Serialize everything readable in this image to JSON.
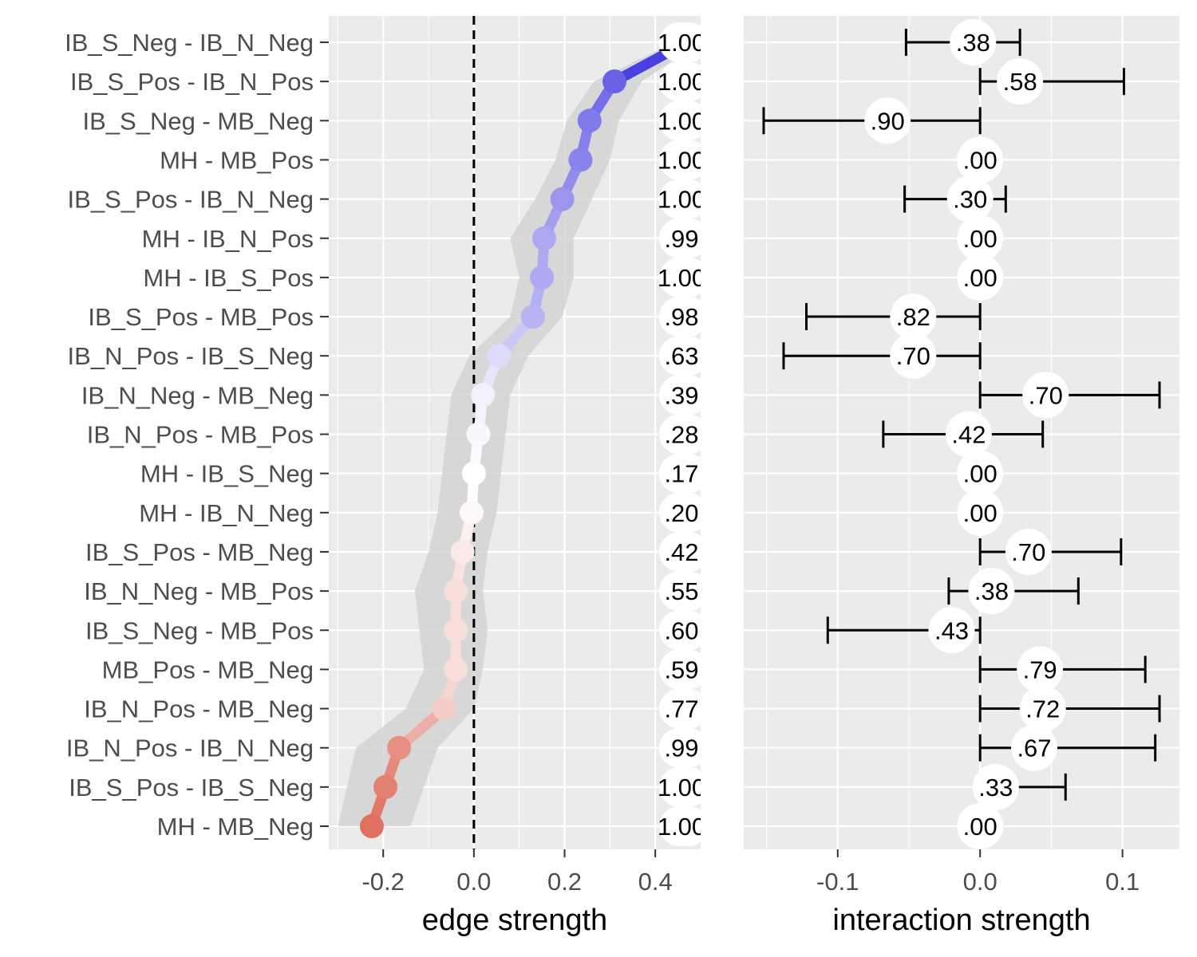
{
  "chart_data": [
    {
      "type": "line",
      "xlabel": "edge strength",
      "xlim": [
        -0.32,
        0.5
      ],
      "xticks": [
        -0.2,
        0.0,
        0.2,
        0.4
      ],
      "xtick_labels": [
        "-0.2",
        "0.0",
        "0.2",
        "0.4"
      ],
      "reference_line_x": 0.0,
      "reference_line_style": "dashed",
      "grid": true,
      "categories": [
        "IB_S_Neg - IB_N_Neg",
        "IB_S_Pos - IB_N_Pos",
        "IB_S_Neg - MB_Neg",
        "MH - MB_Pos",
        "IB_S_Pos - IB_N_Neg",
        "MH - IB_N_Pos",
        "MH - IB_S_Pos",
        "IB_S_Pos - MB_Pos",
        "IB_N_Pos - IB_S_Neg",
        "IB_N_Neg - MB_Neg",
        "IB_N_Pos - MB_Pos",
        "MH - IB_S_Neg",
        "MH - IB_N_Neg",
        "IB_S_Pos - MB_Neg",
        "IB_N_Neg - MB_Pos",
        "IB_S_Neg - MB_Pos",
        "MB_Pos - MB_Neg",
        "IB_N_Pos - MB_Neg",
        "IB_N_Pos - IB_N_Neg",
        "IB_S_Pos - IB_S_Neg",
        "MH - MB_Neg"
      ],
      "values": [
        0.47,
        0.31,
        0.255,
        0.235,
        0.195,
        0.155,
        0.15,
        0.13,
        0.055,
        0.02,
        0.01,
        0.0,
        -0.005,
        -0.025,
        -0.04,
        -0.04,
        -0.04,
        -0.065,
        -0.165,
        -0.195,
        -0.225
      ],
      "ribbon_lower": [
        0.44,
        0.265,
        0.205,
        0.18,
        0.135,
        0.08,
        0.1,
        0.08,
        -0.01,
        -0.05,
        -0.06,
        -0.07,
        -0.08,
        -0.1,
        -0.13,
        -0.12,
        -0.11,
        -0.15,
        -0.26,
        -0.28,
        -0.3
      ],
      "ribbon_upper": [
        0.5,
        0.37,
        0.32,
        0.3,
        0.26,
        0.22,
        0.22,
        0.195,
        0.12,
        0.08,
        0.07,
        0.06,
        0.05,
        0.03,
        0.02,
        0.03,
        0.02,
        0.0,
        -0.08,
        -0.11,
        -0.14
      ],
      "right_labels": [
        "1.00",
        "1.00",
        "1.00",
        "1.00",
        "1.00",
        ".99",
        "1.00",
        ".98",
        ".63",
        ".39",
        ".28",
        ".17",
        ".20",
        ".42",
        ".55",
        ".60",
        ".59",
        ".77",
        ".99",
        "1.00",
        "1.00"
      ],
      "colors": {
        "positive_max": "#2b1fdc",
        "neutral": "#ffffff",
        "negative_max": "#e0705f",
        "ribbon": "#d4d4d4"
      }
    },
    {
      "type": "errorbar",
      "xlabel": "interaction strength",
      "xlim": [
        -0.166,
        0.14
      ],
      "xticks": [
        -0.1,
        0.0,
        0.1
      ],
      "xtick_labels": [
        "-0.1",
        "0.0",
        "0.1"
      ],
      "grid": true,
      "lower": [
        -0.052,
        0.0,
        -0.152,
        0.0,
        -0.053,
        0.0,
        0.0,
        -0.122,
        -0.138,
        0.0,
        -0.068,
        0.0,
        0.0,
        0.0,
        -0.022,
        -0.107,
        0.0,
        0.0,
        0.0,
        0.0,
        0.0
      ],
      "upper": [
        0.028,
        0.101,
        0.0,
        0.0,
        0.018,
        0.0,
        0.0,
        0.0,
        0.0,
        0.126,
        0.044,
        0.0,
        0.0,
        0.099,
        0.069,
        0.0,
        0.116,
        0.126,
        0.123,
        0.06,
        0.0
      ],
      "label_x": [
        -0.005,
        0.028,
        -0.065,
        0.0,
        -0.007,
        0.0,
        0.0,
        -0.047,
        -0.047,
        0.046,
        -0.008,
        0.0,
        0.0,
        0.034,
        0.008,
        -0.02,
        0.042,
        0.044,
        0.038,
        0.011,
        0.0
      ],
      "labels": [
        ".38",
        ".58",
        ".90",
        ".00",
        ".30",
        ".00",
        ".00",
        ".82",
        ".70",
        ".70",
        ".42",
        ".00",
        ".00",
        ".70",
        ".38",
        ".43",
        ".79",
        ".72",
        ".67",
        ".33",
        ".00"
      ]
    }
  ]
}
